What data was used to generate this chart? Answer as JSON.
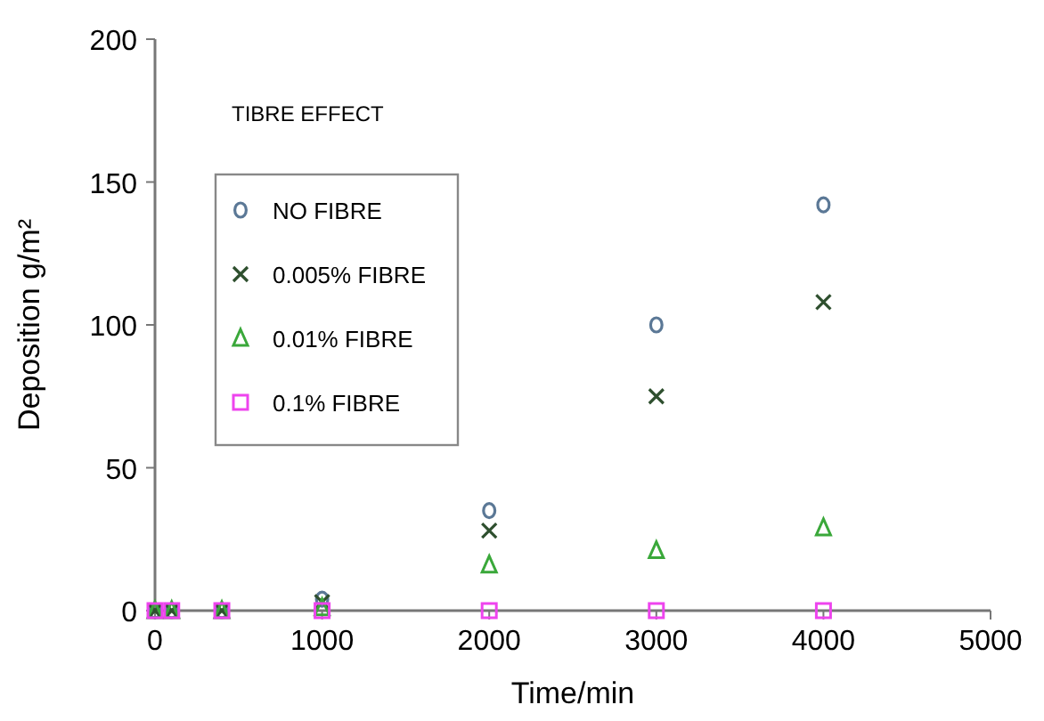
{
  "chart_data": {
    "type": "scatter",
    "xlabel": "Time/min",
    "ylabel": "Deposition g/m²",
    "annotations": [
      "TIBRE EFFECT"
    ],
    "x": [
      0,
      100,
      400,
      1000,
      2000,
      3000,
      4000
    ],
    "series": [
      {
        "name": "NO FIBRE",
        "color": "#5b7896",
        "marker": "circle",
        "values": [
          0,
          0,
          0,
          4,
          35,
          100,
          142
        ]
      },
      {
        "name": "0.005% FIBRE",
        "color": "#2e4f2e",
        "marker": "cross",
        "values": [
          0,
          0,
          0,
          3,
          28,
          75,
          108
        ]
      },
      {
        "name": "0.01% FIBRE",
        "color": "#3aa83a",
        "marker": "triangle",
        "values": [
          0,
          0,
          0,
          1,
          16,
          21,
          29
        ]
      },
      {
        "name": "0.1% FIBRE",
        "color": "#ee44ee",
        "marker": "square",
        "values": [
          0,
          0,
          0,
          0,
          0,
          0,
          0
        ]
      }
    ],
    "xlim": [
      0,
      5000
    ],
    "xticks": [
      0,
      1000,
      2000,
      3000,
      4000,
      5000
    ],
    "ylim": [
      0,
      200
    ],
    "yticks": [
      0,
      50,
      100,
      150,
      200
    ],
    "grid": false,
    "legend": "top left"
  }
}
